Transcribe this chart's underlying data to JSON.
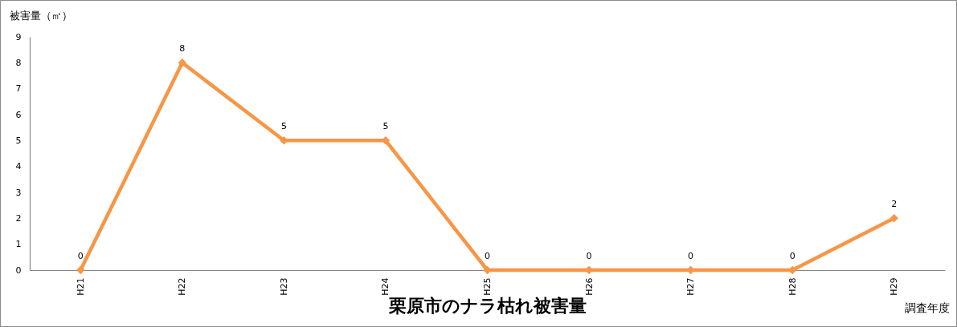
{
  "chart_data": {
    "type": "line",
    "title": "栗原市のナラ枯れ被害量",
    "xlabel": "調査年度",
    "ylabel": "被害量（㎡）",
    "categories": [
      "H21",
      "H22",
      "H23",
      "H24",
      "H25",
      "H26",
      "H27",
      "H28",
      "H29"
    ],
    "series": [
      {
        "color": "#f79646",
        "values": [
          0,
          8,
          5,
          5,
          0,
          0,
          0,
          0,
          2
        ]
      }
    ],
    "ylim": [
      0,
      9
    ],
    "yticks": [
      0,
      1,
      2,
      3,
      4,
      5,
      6,
      7,
      8,
      9
    ],
    "marker": "diamond",
    "line_style": "solid",
    "data_labels": true
  }
}
